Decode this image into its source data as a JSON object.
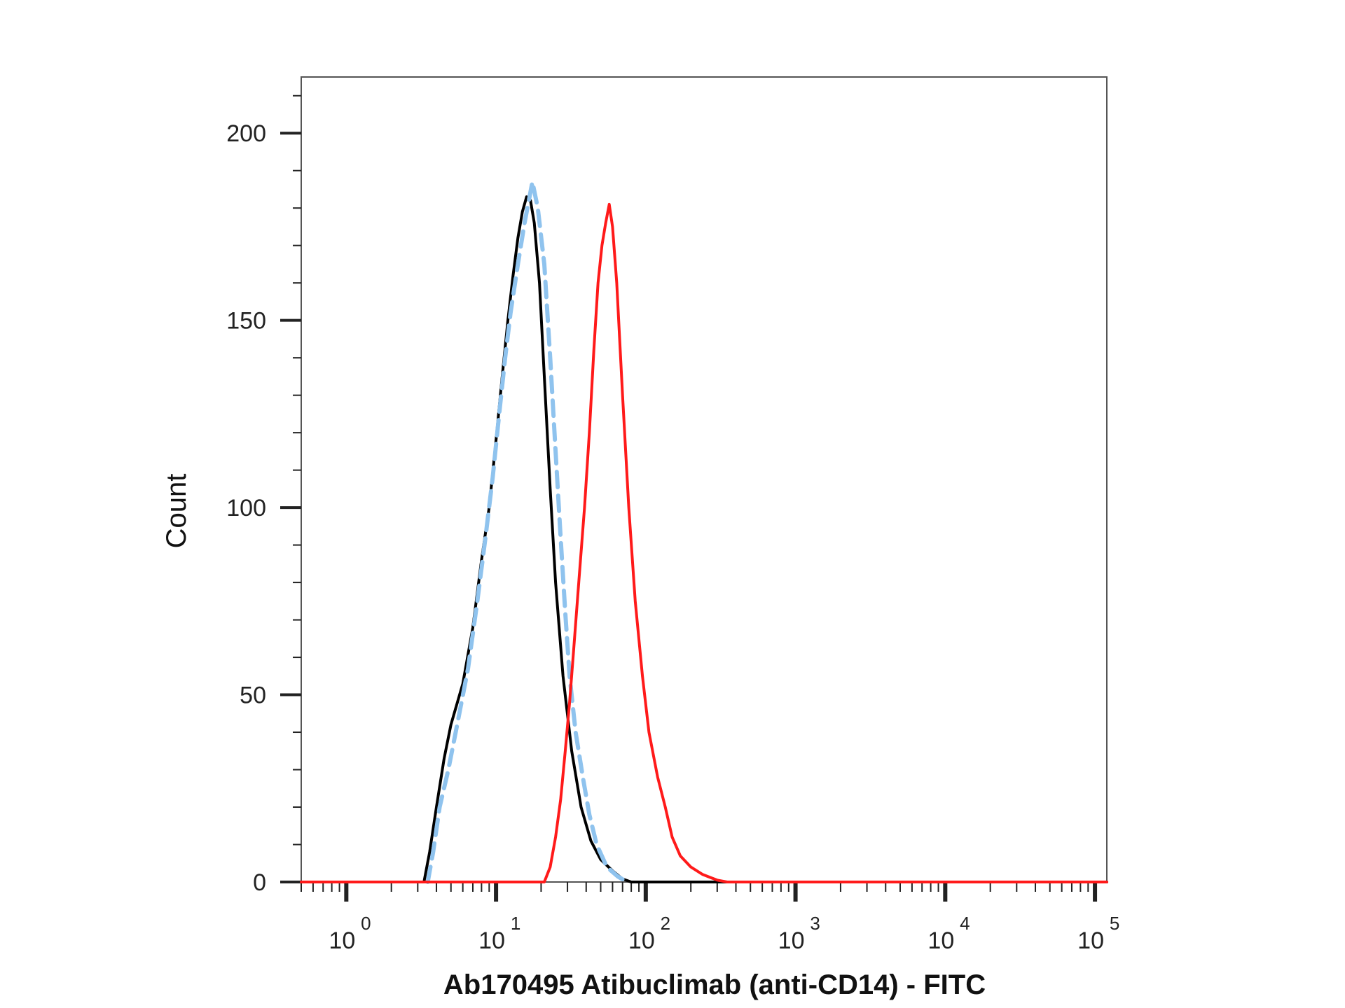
{
  "chart_data": {
    "type": "line",
    "title": "",
    "xlabel": "Ab170495 Atibuclimab (anti-CD14) - FITC",
    "ylabel": "Count",
    "x_scale": "log",
    "xlim": [
      0.5,
      120000
    ],
    "ylim": [
      0,
      215
    ],
    "x_ticks": [
      {
        "value": 1,
        "base": "10",
        "exp": "0"
      },
      {
        "value": 10,
        "base": "10",
        "exp": "1"
      },
      {
        "value": 100,
        "base": "10",
        "exp": "2"
      },
      {
        "value": 1000,
        "base": "10",
        "exp": "3"
      },
      {
        "value": 10000,
        "base": "10",
        "exp": "4"
      },
      {
        "value": 100000,
        "base": "10",
        "exp": "5"
      }
    ],
    "y_ticks": [
      0,
      50,
      100,
      150,
      200
    ],
    "grid": false,
    "series": [
      {
        "color": "#000000",
        "dash": false,
        "points": [
          [
            0.5,
            0
          ],
          [
            3.3,
            0
          ],
          [
            3.6,
            8
          ],
          [
            4.0,
            20
          ],
          [
            4.5,
            33
          ],
          [
            5.0,
            42
          ],
          [
            6.0,
            53
          ],
          [
            7.0,
            68
          ],
          [
            8.0,
            86
          ],
          [
            9.0,
            100
          ],
          [
            10.0,
            118
          ],
          [
            11.0,
            135
          ],
          [
            12.0,
            150
          ],
          [
            13.0,
            162
          ],
          [
            14.0,
            172
          ],
          [
            15.0,
            179
          ],
          [
            16.0,
            183
          ],
          [
            17.0,
            182
          ],
          [
            18.0,
            176
          ],
          [
            19.5,
            160
          ],
          [
            21.0,
            135
          ],
          [
            23.0,
            105
          ],
          [
            25.0,
            80
          ],
          [
            28.0,
            55
          ],
          [
            32.0,
            35
          ],
          [
            37.0,
            20
          ],
          [
            43.0,
            11
          ],
          [
            50.0,
            6
          ],
          [
            60.0,
            3
          ],
          [
            70.0,
            0.8
          ],
          [
            80.0,
            0
          ],
          [
            120000,
            0
          ]
        ]
      },
      {
        "color": "#8fc3ee",
        "dash": true,
        "points": [
          [
            3.5,
            0
          ],
          [
            3.8,
            8
          ],
          [
            4.2,
            20
          ],
          [
            4.8,
            30
          ],
          [
            5.5,
            42
          ],
          [
            6.5,
            57
          ],
          [
            7.5,
            75
          ],
          [
            8.5,
            92
          ],
          [
            9.5,
            108
          ],
          [
            10.5,
            125
          ],
          [
            11.5,
            140
          ],
          [
            12.5,
            152
          ],
          [
            14.0,
            165
          ],
          [
            15.5,
            176
          ],
          [
            17.5,
            187
          ],
          [
            19.0,
            180
          ],
          [
            21.0,
            165
          ],
          [
            23.0,
            140
          ],
          [
            25.0,
            115
          ],
          [
            27.0,
            92
          ],
          [
            29.0,
            72
          ],
          [
            31.0,
            55
          ],
          [
            34.0,
            40
          ],
          [
            38.0,
            28
          ],
          [
            42.0,
            18
          ],
          [
            47.0,
            10
          ],
          [
            55.0,
            4
          ],
          [
            65.0,
            1.5
          ],
          [
            75.0,
            0
          ]
        ]
      },
      {
        "color": "#ff1a1a",
        "dash": false,
        "points": [
          [
            0.5,
            0
          ],
          [
            21.0,
            0
          ],
          [
            23.0,
            4
          ],
          [
            25.0,
            12
          ],
          [
            27.0,
            22
          ],
          [
            29.0,
            35
          ],
          [
            31.0,
            48
          ],
          [
            33.0,
            62
          ],
          [
            36.0,
            82
          ],
          [
            39.0,
            100
          ],
          [
            42.0,
            120
          ],
          [
            45.0,
            142
          ],
          [
            48.0,
            160
          ],
          [
            51.0,
            170
          ],
          [
            54.0,
            176
          ],
          [
            57.0,
            181
          ],
          [
            60.0,
            175
          ],
          [
            64.0,
            160
          ],
          [
            70.0,
            130
          ],
          [
            77.0,
            100
          ],
          [
            85.0,
            75
          ],
          [
            95.0,
            55
          ],
          [
            105.0,
            40
          ],
          [
            120.0,
            28
          ],
          [
            135.0,
            20
          ],
          [
            150.0,
            12
          ],
          [
            170.0,
            7
          ],
          [
            200.0,
            4
          ],
          [
            240.0,
            2
          ],
          [
            300.0,
            0.5
          ],
          [
            350.0,
            0
          ],
          [
            120000,
            0
          ]
        ]
      }
    ]
  }
}
